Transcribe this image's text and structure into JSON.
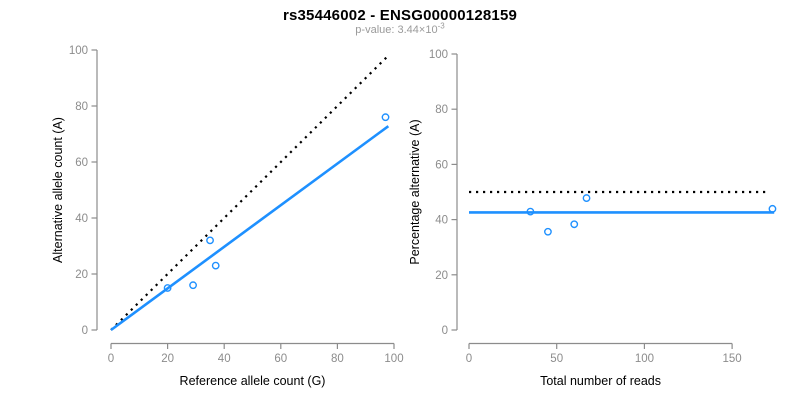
{
  "header": {
    "title": "rs35446002 - ENSG00000128159",
    "pvalue_text": "p-value: 3.44×10",
    "pvalue_exponent": "-3"
  },
  "colors": {
    "point_blue": "#1E90FF",
    "line_blue": "#1E90FF",
    "dotted_black": "#000000",
    "axis_gray": "#8C8C8C",
    "tick_label_gray": "#8C8C8C",
    "axis_title_black": "#000000",
    "title_black": "#000000",
    "subtitle_gray": "#9A9A9A",
    "background": "#FFFFFF"
  },
  "chart_data": [
    {
      "type": "scatter",
      "name": "allele-counts",
      "xlabel": "Reference allele count (G)",
      "ylabel": "Alternative allele count (A)",
      "xlim": [
        0,
        100
      ],
      "ylim": [
        0,
        100
      ],
      "xticks": [
        0,
        20,
        40,
        60,
        80,
        100
      ],
      "yticks": [
        0,
        20,
        40,
        60,
        80,
        100
      ],
      "grid": false,
      "legend": "none",
      "points": [
        [
          20,
          15
        ],
        [
          29,
          16
        ],
        [
          35,
          32
        ],
        [
          37,
          23
        ],
        [
          97,
          76
        ]
      ],
      "lines": [
        {
          "name": "identity-line",
          "style": "dotted",
          "color": "#000000",
          "x": [
            0,
            98
          ],
          "y": [
            0,
            98
          ]
        },
        {
          "name": "fit-line",
          "style": "solid",
          "color": "#1E90FF",
          "x": [
            0,
            98
          ],
          "y": [
            0,
            72.8
          ]
        }
      ]
    },
    {
      "type": "scatter",
      "name": "percentage-alternative",
      "xlabel": "Total number of reads",
      "ylabel": "Percentage alternative (A)",
      "xlim": [
        0,
        183
      ],
      "ylim": [
        0,
        100
      ],
      "xticks": [
        0,
        50,
        100,
        150
      ],
      "yticks": [
        0,
        20,
        40,
        60,
        80,
        100
      ],
      "grid": false,
      "legend": "none",
      "points": [
        [
          35,
          42.9
        ],
        [
          45,
          35.6
        ],
        [
          60,
          38.3
        ],
        [
          67,
          47.8
        ],
        [
          173,
          43.9
        ]
      ],
      "lines": [
        {
          "name": "expected-50pct-line",
          "style": "dotted",
          "color": "#000000",
          "x": [
            0,
            170
          ],
          "y": [
            50,
            50
          ]
        },
        {
          "name": "mean-percentage-line",
          "style": "solid",
          "color": "#1E90FF",
          "x": [
            0,
            174
          ],
          "y": [
            42.6,
            42.6
          ]
        }
      ]
    }
  ]
}
